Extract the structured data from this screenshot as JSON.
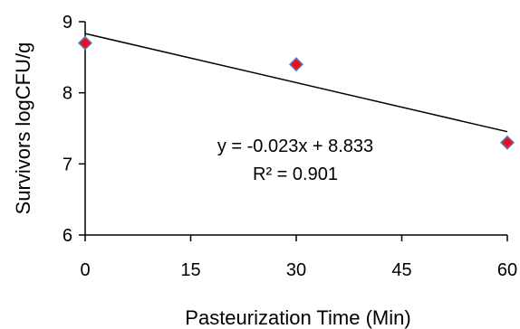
{
  "chart_data": {
    "type": "scatter",
    "title": "",
    "xlabel": "Pasteurization Time (Min)",
    "ylabel": "Survivors logCFU/g",
    "xlim": [
      0,
      60
    ],
    "ylim": [
      6,
      9
    ],
    "xticks": [
      0,
      15,
      30,
      45,
      60
    ],
    "yticks": [
      6,
      7,
      8,
      9
    ],
    "xtick_labels": [
      "0",
      "15",
      "30",
      "45",
      "60"
    ],
    "ytick_labels": [
      "6",
      "7",
      "8",
      "9"
    ],
    "series": [
      {
        "points": [
          {
            "x": 0,
            "y": 8.7
          },
          {
            "x": 30,
            "y": 8.4
          },
          {
            "x": 60,
            "y": 7.3
          }
        ],
        "marker": "diamond",
        "fill_color": "#e8101a",
        "edge_color": "#5b7fbf"
      }
    ],
    "trendline": {
      "type": "linear",
      "slope": -0.023,
      "intercept": 8.833,
      "equation": "y = -0.023x + 8.833",
      "r_squared": "R² = 0.901",
      "color": "#000000"
    },
    "grid": false,
    "legend": "none"
  }
}
